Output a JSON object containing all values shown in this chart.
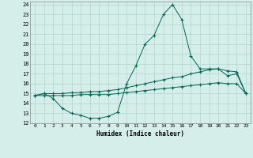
{
  "xlabel": "Humidex (Indice chaleur)",
  "xlim": [
    -0.5,
    23.5
  ],
  "ylim": [
    12,
    24.3
  ],
  "xtick_vals": [
    0,
    1,
    2,
    3,
    4,
    5,
    6,
    7,
    8,
    9,
    10,
    11,
    12,
    13,
    14,
    15,
    16,
    17,
    18,
    19,
    20,
    21,
    22,
    23
  ],
  "xtick_labels": [
    "0",
    "1",
    "2",
    "3",
    "4",
    "5",
    "6",
    "7",
    "8",
    "9",
    "10",
    "11",
    "12",
    "13",
    "14",
    "15",
    "16",
    "17",
    "18",
    "19",
    "20",
    "21",
    "22",
    "23"
  ],
  "ytick_vals": [
    12,
    13,
    14,
    15,
    16,
    17,
    18,
    19,
    20,
    21,
    22,
    23,
    24
  ],
  "ytick_labels": [
    "12",
    "13",
    "14",
    "15",
    "16",
    "17",
    "18",
    "19",
    "20",
    "21",
    "22",
    "23",
    "24"
  ],
  "background_color": "#d6eeea",
  "grid_color": "#b8d8d4",
  "line_color": "#006655",
  "line1_x": [
    0,
    1,
    2,
    3,
    4,
    5,
    6,
    7,
    8,
    9,
    10,
    11,
    12,
    13,
    14,
    15,
    16,
    17,
    18,
    19,
    20,
    21,
    22,
    23
  ],
  "line1_y": [
    14.8,
    15.0,
    14.5,
    13.5,
    13.0,
    12.8,
    12.5,
    12.5,
    12.7,
    13.1,
    16.0,
    17.8,
    20.0,
    20.9,
    23.0,
    24.0,
    22.5,
    18.8,
    17.5,
    17.5,
    17.5,
    16.8,
    17.0,
    15.0
  ],
  "line2_x": [
    0,
    1,
    2,
    3,
    4,
    5,
    6,
    7,
    8,
    9,
    10,
    11,
    12,
    13,
    14,
    15,
    16,
    17,
    18,
    19,
    20,
    21,
    22,
    23
  ],
  "line2_y": [
    14.8,
    15.0,
    15.0,
    15.0,
    15.1,
    15.1,
    15.2,
    15.2,
    15.3,
    15.4,
    15.6,
    15.8,
    16.0,
    16.2,
    16.4,
    16.6,
    16.7,
    17.0,
    17.2,
    17.4,
    17.5,
    17.3,
    17.2,
    15.0
  ],
  "line3_x": [
    0,
    1,
    2,
    3,
    4,
    5,
    6,
    7,
    8,
    9,
    10,
    11,
    12,
    13,
    14,
    15,
    16,
    17,
    18,
    19,
    20,
    21,
    22,
    23
  ],
  "line3_y": [
    14.8,
    14.8,
    14.8,
    14.8,
    14.8,
    14.9,
    14.9,
    14.9,
    14.9,
    15.0,
    15.1,
    15.2,
    15.3,
    15.4,
    15.5,
    15.6,
    15.7,
    15.8,
    15.9,
    16.0,
    16.1,
    16.0,
    16.0,
    15.0
  ]
}
